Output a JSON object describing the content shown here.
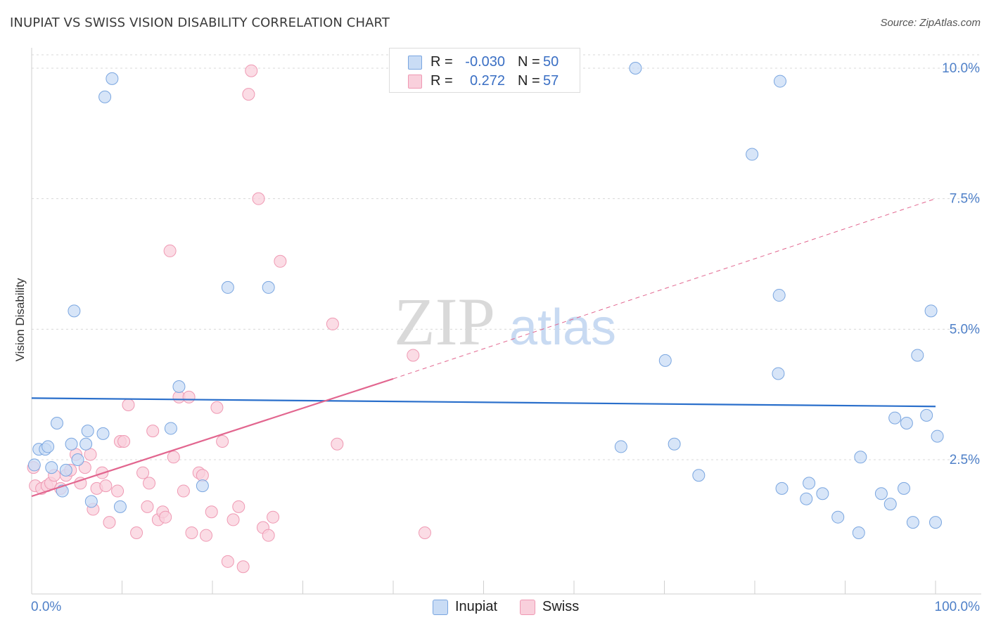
{
  "header": {
    "title": "INUPIAT VS SWISS VISION DISABILITY CORRELATION CHART",
    "source": "Source: ZipAtlas.com"
  },
  "watermark": {
    "zip": "ZIP",
    "atlas": "atlas"
  },
  "legend": {
    "rows": [
      {
        "r_label": "R =",
        "r_value": "-0.030",
        "n_label": "N =",
        "n_value": "50"
      },
      {
        "r_label": "R =",
        "r_value": "0.272",
        "n_label": "N =",
        "n_value": "57"
      }
    ]
  },
  "colors": {
    "inupiat_fill": "#c9dcf5",
    "inupiat_stroke": "#7aa6e0",
    "inupiat_line": "#2a6fcb",
    "swiss_fill": "#f9d0dc",
    "swiss_stroke": "#ef99b3",
    "swiss_line": "#e2668f",
    "tick_label": "#4f80c8",
    "grid": "#d8d8d8"
  },
  "chart_data": {
    "type": "scatter",
    "title": "INUPIAT VS SWISS VISION DISABILITY CORRELATION CHART",
    "xlabel": "",
    "ylabel": "Vision Disability",
    "xlim": [
      0,
      100
    ],
    "ylim": [
      0,
      10.5
    ],
    "x_tick_labels": [
      "0.0%",
      "100.0%"
    ],
    "y_ticks": [
      2.5,
      5.0,
      7.5,
      10.0
    ],
    "y_tick_labels": [
      "2.5%",
      "5.0%",
      "7.5%",
      "10.0%"
    ],
    "grid": "horizontal dashed",
    "legend_position": "top-center",
    "series": [
      {
        "name": "Inupiat",
        "R": -0.03,
        "N": 50,
        "trend": {
          "x": [
            0,
            100
          ],
          "y": [
            3.68,
            3.52
          ],
          "style": "solid"
        },
        "points": [
          [
            0.3,
            2.4
          ],
          [
            0.8,
            2.7
          ],
          [
            1.5,
            2.7
          ],
          [
            1.8,
            2.75
          ],
          [
            2.2,
            2.35
          ],
          [
            2.8,
            3.2
          ],
          [
            3.4,
            1.9
          ],
          [
            3.8,
            2.3
          ],
          [
            4.4,
            2.8
          ],
          [
            4.7,
            5.35
          ],
          [
            5.1,
            2.5
          ],
          [
            6.0,
            2.8
          ],
          [
            6.2,
            3.05
          ],
          [
            6.6,
            1.7
          ],
          [
            7.9,
            3.0
          ],
          [
            8.1,
            9.45
          ],
          [
            8.9,
            9.8
          ],
          [
            9.8,
            1.6
          ],
          [
            15.4,
            3.1
          ],
          [
            16.3,
            3.9
          ],
          [
            18.9,
            2.0
          ],
          [
            21.7,
            5.8
          ],
          [
            26.2,
            5.8
          ],
          [
            65.2,
            2.75
          ],
          [
            66.8,
            10.0
          ],
          [
            70.1,
            4.4
          ],
          [
            71.1,
            2.8
          ],
          [
            73.8,
            2.2
          ],
          [
            83.0,
            1.95
          ],
          [
            86.0,
            2.05
          ],
          [
            89.2,
            1.4
          ],
          [
            79.7,
            8.35
          ],
          [
            82.6,
            4.15
          ],
          [
            82.7,
            5.65
          ],
          [
            85.7,
            1.75
          ],
          [
            87.5,
            1.85
          ],
          [
            91.5,
            1.1
          ],
          [
            82.8,
            9.75
          ],
          [
            91.7,
            2.55
          ],
          [
            95.5,
            3.3
          ],
          [
            96.8,
            3.2
          ],
          [
            98.0,
            4.5
          ],
          [
            99.0,
            3.35
          ],
          [
            100.0,
            1.3
          ],
          [
            100.2,
            2.95
          ],
          [
            95.0,
            1.65
          ],
          [
            94.0,
            1.85
          ],
          [
            96.5,
            1.95
          ],
          [
            97.5,
            1.3
          ],
          [
            99.5,
            5.35
          ]
        ]
      },
      {
        "name": "Swiss",
        "R": 0.272,
        "N": 57,
        "trend": {
          "solid": {
            "x": [
              0,
              40
            ],
            "y": [
              1.8,
              4.05
            ]
          },
          "dashed": {
            "x": [
              40,
              100
            ],
            "y": [
              4.05,
              7.5
            ]
          }
        },
        "points": [
          [
            0.2,
            2.35
          ],
          [
            0.4,
            2.0
          ],
          [
            1.1,
            1.95
          ],
          [
            1.7,
            2.0
          ],
          [
            2.1,
            2.05
          ],
          [
            2.5,
            2.2
          ],
          [
            3.2,
            1.95
          ],
          [
            3.8,
            2.2
          ],
          [
            4.3,
            2.3
          ],
          [
            4.9,
            2.6
          ],
          [
            5.4,
            2.05
          ],
          [
            5.9,
            2.35
          ],
          [
            6.5,
            2.6
          ],
          [
            6.8,
            1.55
          ],
          [
            7.2,
            1.95
          ],
          [
            7.8,
            2.25
          ],
          [
            8.2,
            2.0
          ],
          [
            8.6,
            1.3
          ],
          [
            9.5,
            1.9
          ],
          [
            9.8,
            2.85
          ],
          [
            10.2,
            2.85
          ],
          [
            10.7,
            3.55
          ],
          [
            11.6,
            1.1
          ],
          [
            12.3,
            2.25
          ],
          [
            12.8,
            1.6
          ],
          [
            13.0,
            2.05
          ],
          [
            13.4,
            3.05
          ],
          [
            14.0,
            1.35
          ],
          [
            14.5,
            1.5
          ],
          [
            14.8,
            1.4
          ],
          [
            15.3,
            6.5
          ],
          [
            15.7,
            2.55
          ],
          [
            16.3,
            3.7
          ],
          [
            16.8,
            1.9
          ],
          [
            17.4,
            3.7
          ],
          [
            17.7,
            1.1
          ],
          [
            18.5,
            2.25
          ],
          [
            18.9,
            2.2
          ],
          [
            19.3,
            1.05
          ],
          [
            19.9,
            1.5
          ],
          [
            20.5,
            3.5
          ],
          [
            21.1,
            2.85
          ],
          [
            21.7,
            0.55
          ],
          [
            22.3,
            1.35
          ],
          [
            22.9,
            1.6
          ],
          [
            23.4,
            0.45
          ],
          [
            24.0,
            9.5
          ],
          [
            24.3,
            9.95
          ],
          [
            25.1,
            7.5
          ],
          [
            25.6,
            1.2
          ],
          [
            26.2,
            1.05
          ],
          [
            26.7,
            1.4
          ],
          [
            27.5,
            6.3
          ],
          [
            33.3,
            5.1
          ],
          [
            33.8,
            2.8
          ],
          [
            42.2,
            4.5
          ],
          [
            43.5,
            1.1
          ]
        ]
      }
    ]
  },
  "bottom_legend": {
    "items": [
      "Inupiat",
      "Swiss"
    ]
  }
}
